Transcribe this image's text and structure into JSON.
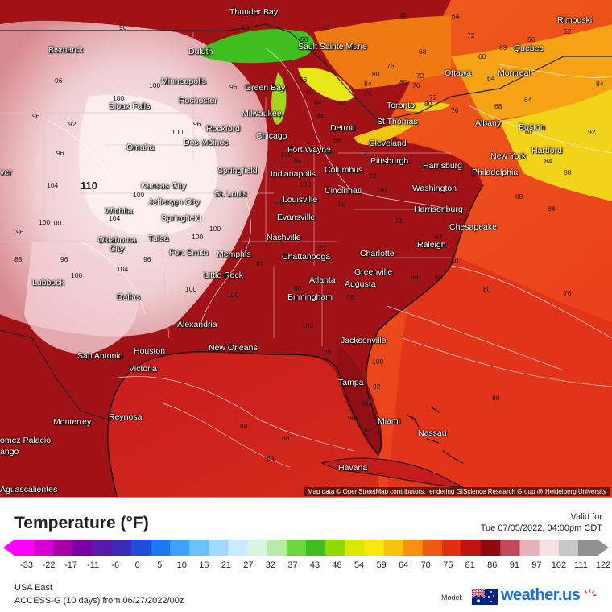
{
  "map": {
    "attribution": "Map data © OpenStreetMap contributors, rendering GIScience Research Group @ Heidelberg University",
    "highlight_label": "110",
    "colors": {
      "ocean_hot": "#c01c1c",
      "atlantic": "#e8361c",
      "atlantic_cool": "#ef5a1a",
      "plains_pale": "#f4dada",
      "heat_red": "#9e1014",
      "great_lakes_green": "#3fbf1f",
      "northeast_yellow": "#f7e51c"
    },
    "cities": [
      {
        "name": "Thunder Bay"
      },
      {
        "name": "Bismarck"
      },
      {
        "name": "Duluth"
      },
      {
        "name": "Sault Sainte Marie"
      },
      {
        "name": "Rimouski"
      },
      {
        "name": "Quebec"
      },
      {
        "name": "Ottawa"
      },
      {
        "name": "Montreal"
      },
      {
        "name": "Minneapolis"
      },
      {
        "name": "Green Bay"
      },
      {
        "name": "Rochester"
      },
      {
        "name": "Sioux Falls"
      },
      {
        "name": "Milwaukee"
      },
      {
        "name": "Toronto"
      },
      {
        "name": "St Thomas"
      },
      {
        "name": "Albany"
      },
      {
        "name": "Boston"
      },
      {
        "name": "Rockford"
      },
      {
        "name": "Detroit"
      },
      {
        "name": "Des Moines"
      },
      {
        "name": "Chicago"
      },
      {
        "name": "Omaha"
      },
      {
        "name": "Fort Wayne"
      },
      {
        "name": "Cleveland"
      },
      {
        "name": "New York"
      },
      {
        "name": "Hartford"
      },
      {
        "name": "Pittsburgh"
      },
      {
        "name": "Harrisburg"
      },
      {
        "name": "Philadelphia"
      },
      {
        "name": "Springfield"
      },
      {
        "name": "Indianapolis"
      },
      {
        "name": "Columbus"
      },
      {
        "name": "Kansas City"
      },
      {
        "name": "St. Louis"
      },
      {
        "name": "Jefferson City"
      },
      {
        "name": "Cincinnati"
      },
      {
        "name": "Washington"
      },
      {
        "name": "Louisville"
      },
      {
        "name": "Wichita"
      },
      {
        "name": "Springfield"
      },
      {
        "name": "Evansville"
      },
      {
        "name": "Harrisonburg"
      },
      {
        "name": "Chesapeake"
      },
      {
        "name": "Oklahoma City"
      },
      {
        "name": "Tulsa"
      },
      {
        "name": "Nashville"
      },
      {
        "name": "Raleigh"
      },
      {
        "name": "Fort Smith"
      },
      {
        "name": "Memphis"
      },
      {
        "name": "Chattanooga"
      },
      {
        "name": "Charlotte"
      },
      {
        "name": "Little Rock"
      },
      {
        "name": "Greenville"
      },
      {
        "name": "Atlanta"
      },
      {
        "name": "Augusta"
      },
      {
        "name": "Lubbock"
      },
      {
        "name": "Birmingham"
      },
      {
        "name": "Dallas"
      },
      {
        "name": "Alexandria"
      },
      {
        "name": "Jacksonville"
      },
      {
        "name": "New Orleans"
      },
      {
        "name": "Houston"
      },
      {
        "name": "San Antonio"
      },
      {
        "name": "Victoria"
      },
      {
        "name": "Tampa"
      },
      {
        "name": "Reynosa"
      },
      {
        "name": "Monterrey"
      },
      {
        "name": "Miami"
      },
      {
        "name": "Nassau"
      },
      {
        "name": "omez Palacio"
      },
      {
        "name": "ango"
      },
      {
        "name": "Havana"
      },
      {
        "name": "Aguascalientes"
      },
      {
        "name": "ver"
      }
    ],
    "isotherm_labels": [
      "96",
      "96",
      "96",
      "100",
      "100",
      "96",
      "100",
      "96",
      "92",
      "96",
      "100",
      "96",
      "88",
      "104",
      "100",
      "96",
      "100",
      "100",
      "104",
      "96",
      "100",
      "96",
      "104",
      "100",
      "100",
      "96",
      "96",
      "100",
      "100",
      "96",
      "100",
      "92",
      "96",
      "100",
      "92",
      "88",
      "100",
      "96",
      "96",
      "100",
      "96",
      "92",
      "96",
      "92",
      "88",
      "84",
      "88",
      "84",
      "84",
      "84",
      "80",
      "76",
      "80",
      "76",
      "72",
      "68",
      "64",
      "60",
      "56",
      "52",
      "56",
      "60",
      "64",
      "68",
      "72",
      "76",
      "80",
      "76",
      "72",
      "68",
      "64",
      "60",
      "56",
      "48",
      "48",
      "40",
      "72",
      "68",
      "64",
      "60",
      "84",
      "88",
      "92",
      "84",
      "88",
      "84",
      "84",
      "80",
      "80",
      "76",
      "80",
      "88",
      "92",
      "96",
      "92",
      "88",
      "84"
    ]
  },
  "legend": {
    "title": "Temperature (°F)",
    "valid_label": "Valid for",
    "valid_time": "Tue 07/05/2022, 04:00pm CDT",
    "ticks": [
      "-33",
      "-22",
      "-17",
      "-11",
      "-6",
      "0",
      "5",
      "10",
      "16",
      "21",
      "27",
      "32",
      "37",
      "43",
      "48",
      "54",
      "59",
      "64",
      "70",
      "75",
      "81",
      "86",
      "91",
      "97",
      "102",
      "111",
      "122"
    ],
    "colorbar_stops": [
      "#ff00ff",
      "#d400d4",
      "#a400a4",
      "#7a00a8",
      "#5a1aa8",
      "#3a2ab8",
      "#1e4fd8",
      "#1e78f0",
      "#3ea0ff",
      "#6cc0ff",
      "#a0d8ff",
      "#c8ecff",
      "#d8f5e0",
      "#b8eaa8",
      "#6cd63c",
      "#3fbf1f",
      "#8fd800",
      "#d8e800",
      "#f8e810",
      "#f8c010",
      "#f89010",
      "#f05a10",
      "#e03010",
      "#c01010",
      "#8e0a0e",
      "#c04a5a",
      "#e8b0b8",
      "#f8e0e4",
      "#c8c8c8",
      "#909090"
    ]
  },
  "footer": {
    "region": "USA East",
    "model_run": "ACCESS-G (10 days) from 06/27/2022/00z",
    "model_label": "Model:",
    "brand": "weather.us"
  }
}
